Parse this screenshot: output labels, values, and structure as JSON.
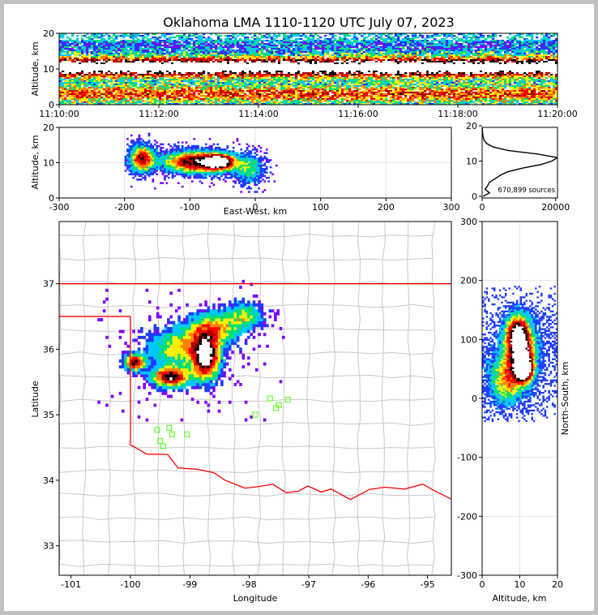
{
  "title": "Oklahoma LMA 1110-1120 UTC July 07, 2023",
  "panels": {
    "time_height": {
      "ylabel": "Altitude, km",
      "ylim": [
        0,
        20
      ],
      "yticks": [
        "0",
        "10",
        "20"
      ],
      "xticks": [
        "11:10:00",
        "11:12:00",
        "11:14:00",
        "11:16:00",
        "11:18:00",
        "11:20:00"
      ]
    },
    "ew_alt": {
      "ylabel": "Altitude, km",
      "xlabel": "East-West, km",
      "xlim": [
        -300,
        300
      ],
      "ylim": [
        0,
        20
      ],
      "xticks": [
        "-300",
        "-200",
        "-100",
        "0",
        "100",
        "200",
        "300"
      ],
      "yticks": [
        "0",
        "10",
        "20"
      ]
    },
    "histogram": {
      "xticks": [
        "0",
        "20000"
      ],
      "yticks": [
        "0",
        "10",
        "20"
      ],
      "annotation": "670,899 sources"
    },
    "plan": {
      "xlabel": "Longitude",
      "ylabel": "Latitude",
      "xlim": [
        -101.2,
        -94.6
      ],
      "ylim": [
        32.55,
        37.95
      ],
      "xticks": [
        "-101",
        "-100",
        "-99",
        "-98",
        "-97",
        "-96",
        "-95"
      ],
      "yticks": [
        "33",
        "34",
        "35",
        "36",
        "37"
      ]
    },
    "ns_alt": {
      "xlabel": "Altitude, km",
      "ylabel": "North-South, km",
      "xlim": [
        0,
        20
      ],
      "ylim": [
        -300,
        300
      ],
      "xticks": [
        "0",
        "10",
        "20"
      ],
      "yticks": [
        "-300",
        "-200",
        "-100",
        "0",
        "100",
        "200",
        "300"
      ]
    }
  },
  "chart_data": {
    "type": "heatmap",
    "colormap": [
      "#7b00ff",
      "#1e3cff",
      "#00c8ff",
      "#00e070",
      "#fff000",
      "#ff8000",
      "#ff0000",
      "#aa0000",
      "#000000",
      "#ffffff"
    ],
    "total_sources": 670899,
    "station_color": "#66ff33",
    "boundary_color": "#ff0000",
    "altitude_histogram": {
      "altitude_km": [
        0,
        1,
        2,
        3,
        4,
        5,
        6,
        7,
        8,
        9,
        10,
        11,
        12,
        13,
        14,
        15,
        16,
        17,
        18,
        19,
        20
      ],
      "counts": [
        300,
        2000,
        800,
        1500,
        2000,
        3500,
        5000,
        7000,
        11000,
        16000,
        19000,
        20500,
        15000,
        7000,
        3000,
        1200,
        500,
        250,
        120,
        60,
        30
      ]
    },
    "stations": [
      {
        "lon": -99.55,
        "lat": 34.77
      },
      {
        "lon": -99.35,
        "lat": 34.8
      },
      {
        "lon": -99.3,
        "lat": 34.7
      },
      {
        "lon": -99.5,
        "lat": 34.6
      },
      {
        "lon": -99.45,
        "lat": 34.52
      },
      {
        "lon": -99.05,
        "lat": 34.7
      },
      {
        "lon": -97.9,
        "lat": 35.0
      },
      {
        "lon": -97.65,
        "lat": 35.25
      },
      {
        "lon": -97.55,
        "lat": 35.1
      },
      {
        "lon": -97.5,
        "lat": 35.15
      },
      {
        "lon": -97.35,
        "lat": 35.23
      }
    ]
  }
}
